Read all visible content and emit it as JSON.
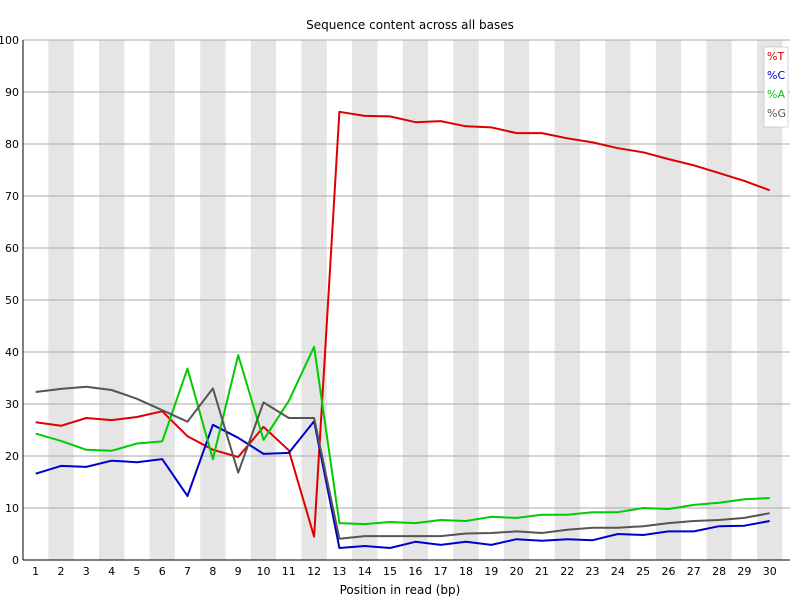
{
  "chart_data": {
    "type": "line",
    "title": "Sequence content across all bases",
    "xlabel": "Position in read (bp)",
    "ylabel": "",
    "categories": [
      "1",
      "2",
      "3",
      "4",
      "5",
      "6",
      "7",
      "8",
      "9",
      "10",
      "11",
      "12",
      "13",
      "14",
      "15",
      "16",
      "17",
      "18",
      "19",
      "20",
      "21",
      "22",
      "23",
      "24",
      "25",
      "26",
      "27",
      "28",
      "29",
      "30"
    ],
    "ylim": [
      0,
      100
    ],
    "yticks": [
      "0",
      "10",
      "20",
      "30",
      "40",
      "50",
      "60",
      "70",
      "80",
      "90",
      "100"
    ],
    "grid": true,
    "alternating_column_bands": true,
    "legend_position": "top-right",
    "series": [
      {
        "name": "%T",
        "color": "#dd0000",
        "values": [
          26.5,
          25.8,
          27.3,
          26.9,
          27.5,
          28.6,
          23.8,
          21.2,
          19.8,
          25.6,
          21.1,
          4.5,
          86.2,
          85.4,
          85.3,
          84.2,
          84.4,
          83.4,
          83.2,
          82.1,
          82.1,
          81.1,
          80.3,
          79.2,
          78.4,
          77.1,
          75.9,
          74.4,
          72.9,
          71.1
        ]
      },
      {
        "name": "%C",
        "color": "#0000cc",
        "values": [
          16.6,
          18.1,
          17.9,
          19.1,
          18.8,
          19.4,
          12.3,
          26.0,
          23.5,
          20.4,
          20.6,
          26.7,
          2.3,
          2.7,
          2.3,
          3.5,
          2.9,
          3.5,
          2.9,
          4.0,
          3.7,
          4.0,
          3.8,
          5.0,
          4.8,
          5.5,
          5.5,
          6.5,
          6.6,
          7.5
        ]
      },
      {
        "name": "%A",
        "color": "#00cc00",
        "values": [
          24.3,
          22.9,
          21.2,
          21.0,
          22.4,
          22.8,
          36.8,
          19.4,
          39.4,
          23.1,
          30.6,
          41.0,
          7.1,
          6.9,
          7.3,
          7.1,
          7.7,
          7.5,
          8.3,
          8.1,
          8.7,
          8.7,
          9.2,
          9.2,
          10.0,
          9.8,
          10.6,
          11.0,
          11.7,
          11.9
        ]
      },
      {
        "name": "%G",
        "color": "#555555",
        "values": [
          32.3,
          32.9,
          33.3,
          32.7,
          31.0,
          28.8,
          26.6,
          33.0,
          16.8,
          30.3,
          27.3,
          27.3,
          4.1,
          4.6,
          4.6,
          4.6,
          4.6,
          5.1,
          5.2,
          5.5,
          5.2,
          5.8,
          6.2,
          6.2,
          6.5,
          7.1,
          7.5,
          7.7,
          8.1,
          9.0
        ]
      }
    ]
  }
}
